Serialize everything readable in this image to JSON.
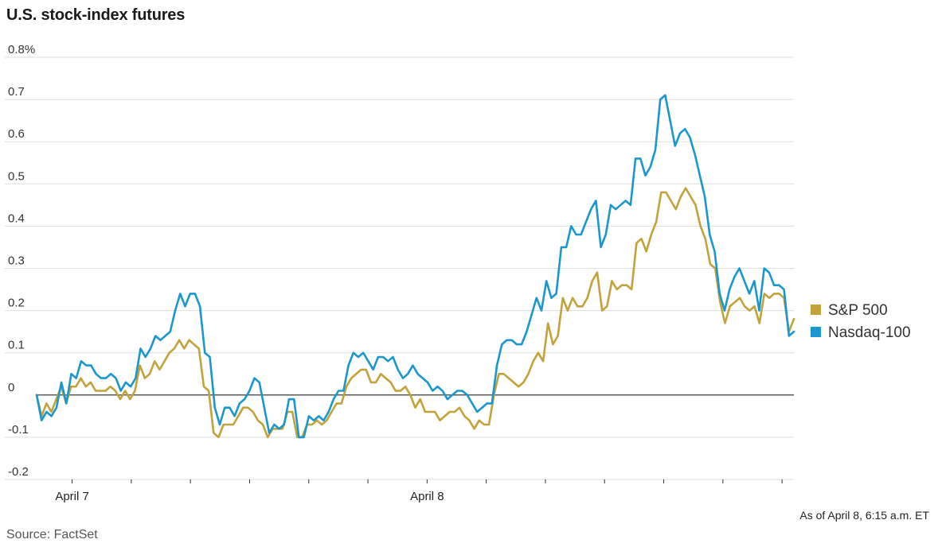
{
  "chart_data": {
    "type": "line",
    "title": "U.S. stock-index futures",
    "ylim": [
      -0.2,
      0.8
    ],
    "yticks": [
      -0.2,
      -0.1,
      0,
      0.1,
      0.2,
      0.3,
      0.4,
      0.5,
      0.6,
      0.7,
      0.8
    ],
    "ytick_labels": [
      "-0.2",
      "-0.1",
      "0",
      "0.1",
      "0.2",
      "0.3",
      "0.4",
      "0.5",
      "0.6",
      "0.7",
      "0.8%"
    ],
    "xlim": [
      0,
      128
    ],
    "x_labels": [
      {
        "x": 6,
        "label": "April 7"
      },
      {
        "x": 66,
        "label": "April 8"
      }
    ],
    "x_minor_ticks": [
      6,
      16,
      26,
      36,
      46,
      56,
      66,
      76,
      86,
      96,
      106,
      116,
      126
    ],
    "grid": true,
    "legend": "right",
    "zero_line": true,
    "series": [
      {
        "name": "S&P 500",
        "color": "#c2a23a",
        "values": [
          0.0,
          -0.05,
          -0.02,
          -0.04,
          -0.01,
          0.02,
          -0.02,
          0.02,
          0.02,
          0.04,
          0.02,
          0.03,
          0.01,
          0.01,
          0.01,
          0.02,
          0.01,
          -0.01,
          0.01,
          -0.01,
          0.01,
          0.07,
          0.04,
          0.05,
          0.08,
          0.06,
          0.08,
          0.1,
          0.11,
          0.13,
          0.11,
          0.13,
          0.12,
          0.11,
          0.02,
          0.01,
          -0.09,
          -0.1,
          -0.07,
          -0.07,
          -0.07,
          -0.05,
          -0.03,
          -0.03,
          -0.04,
          -0.06,
          -0.07,
          -0.1,
          -0.08,
          -0.08,
          -0.08,
          -0.04,
          -0.04,
          -0.1,
          -0.1,
          -0.07,
          -0.07,
          -0.06,
          -0.07,
          -0.06,
          -0.04,
          -0.02,
          -0.02,
          0.02,
          0.04,
          0.05,
          0.06,
          0.06,
          0.03,
          0.03,
          0.05,
          0.04,
          0.03,
          0.01,
          0.01,
          0.02,
          0.0,
          -0.03,
          -0.01,
          -0.04,
          -0.04,
          -0.04,
          -0.06,
          -0.05,
          -0.04,
          -0.04,
          -0.03,
          -0.05,
          -0.06,
          -0.08,
          -0.06,
          -0.07,
          -0.07,
          0.0,
          0.05,
          0.05,
          0.04,
          0.03,
          0.02,
          0.03,
          0.05,
          0.08,
          0.1,
          0.08,
          0.17,
          0.12,
          0.14,
          0.23,
          0.2,
          0.23,
          0.21,
          0.21,
          0.23,
          0.27,
          0.29,
          0.2,
          0.21,
          0.27,
          0.25,
          0.26,
          0.26,
          0.25,
          0.36,
          0.37,
          0.34,
          0.38,
          0.41,
          0.48,
          0.48,
          0.46,
          0.44,
          0.47,
          0.49,
          0.47,
          0.45,
          0.4,
          0.37,
          0.31,
          0.3,
          0.22,
          0.17,
          0.21,
          0.22,
          0.23,
          0.21,
          0.2,
          0.21,
          0.17,
          0.24,
          0.23,
          0.24,
          0.24,
          0.23,
          0.15,
          0.18
        ]
      },
      {
        "name": "Nasdaq-100",
        "color": "#1b97d0",
        "values": [
          0.0,
          -0.06,
          -0.04,
          -0.05,
          -0.03,
          0.03,
          -0.02,
          0.05,
          0.04,
          0.08,
          0.07,
          0.07,
          0.05,
          0.04,
          0.04,
          0.05,
          0.04,
          0.01,
          0.03,
          0.02,
          0.04,
          0.11,
          0.09,
          0.11,
          0.14,
          0.13,
          0.14,
          0.15,
          0.2,
          0.24,
          0.21,
          0.24,
          0.24,
          0.21,
          0.1,
          0.09,
          -0.03,
          -0.07,
          -0.03,
          -0.03,
          -0.05,
          -0.02,
          -0.01,
          0.01,
          0.04,
          0.03,
          -0.03,
          -0.09,
          -0.07,
          -0.08,
          -0.07,
          -0.01,
          -0.01,
          -0.1,
          -0.1,
          -0.05,
          -0.06,
          -0.05,
          -0.06,
          -0.04,
          -0.01,
          0.01,
          0.01,
          0.07,
          0.1,
          0.09,
          0.1,
          0.08,
          0.06,
          0.09,
          0.09,
          0.08,
          0.09,
          0.06,
          0.04,
          0.05,
          0.07,
          0.05,
          0.04,
          0.03,
          0.01,
          0.02,
          0.01,
          -0.01,
          0.0,
          0.01,
          0.01,
          0.0,
          -0.02,
          -0.04,
          -0.03,
          -0.02,
          -0.02,
          0.07,
          0.12,
          0.13,
          0.13,
          0.12,
          0.12,
          0.15,
          0.19,
          0.23,
          0.2,
          0.27,
          0.23,
          0.24,
          0.35,
          0.35,
          0.4,
          0.38,
          0.38,
          0.41,
          0.44,
          0.46,
          0.35,
          0.38,
          0.45,
          0.44,
          0.45,
          0.46,
          0.45,
          0.56,
          0.56,
          0.52,
          0.54,
          0.58,
          0.7,
          0.71,
          0.65,
          0.59,
          0.62,
          0.63,
          0.61,
          0.57,
          0.52,
          0.47,
          0.38,
          0.34,
          0.24,
          0.2,
          0.25,
          0.28,
          0.3,
          0.27,
          0.24,
          0.27,
          0.2,
          0.3,
          0.29,
          0.26,
          0.26,
          0.25,
          0.14,
          0.15
        ]
      }
    ],
    "notes": {
      "as_of": "As of April 8, 6:15 a.m. ET",
      "source": "Source: FactSet"
    }
  }
}
